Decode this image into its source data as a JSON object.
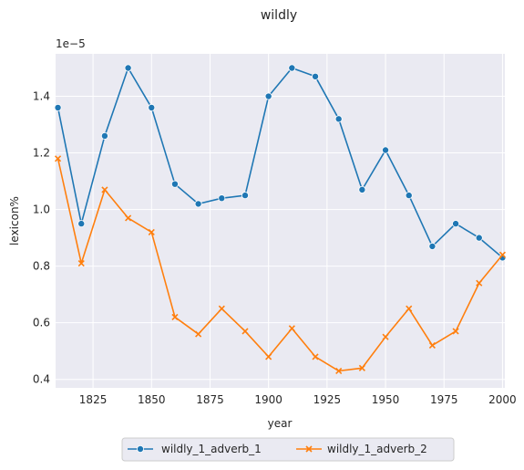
{
  "chart_data": {
    "type": "line",
    "title": "wildly",
    "xlabel": "year",
    "ylabel": "lexicon%",
    "y_offset_label": "1e−5",
    "xlim": [
      1809,
      2001
    ],
    "ylim": [
      0.37,
      1.55
    ],
    "x_ticks": [
      1825,
      1850,
      1875,
      1900,
      1925,
      1950,
      1975,
      2000
    ],
    "y_ticks": [
      0.4,
      0.6,
      0.8,
      1.0,
      1.2,
      1.4
    ],
    "y_tick_labels": [
      "0.4",
      "0.6",
      "0.8",
      "1.0",
      "1.2",
      "1.4"
    ],
    "grid": true,
    "legend_placement": "bottom-center-outside",
    "x": [
      1810,
      1820,
      1830,
      1840,
      1850,
      1860,
      1870,
      1880,
      1890,
      1900,
      1910,
      1920,
      1930,
      1940,
      1950,
      1960,
      1970,
      1980,
      1990,
      2000
    ],
    "series": [
      {
        "name": "wildly_1_adverb_1",
        "color": "#1f77b4",
        "marker": "circle",
        "values": [
          1.36,
          0.95,
          1.26,
          1.5,
          1.36,
          1.09,
          1.02,
          1.04,
          1.05,
          1.4,
          1.5,
          1.47,
          1.32,
          1.07,
          1.21,
          1.05,
          0.87,
          0.95,
          0.9,
          0.83
        ]
      },
      {
        "name": "wildly_1_adverb_2",
        "color": "#ff7f0e",
        "marker": "x",
        "values": [
          1.18,
          0.81,
          1.07,
          0.97,
          0.92,
          0.62,
          0.56,
          0.65,
          0.57,
          0.48,
          0.58,
          0.48,
          0.43,
          0.44,
          0.55,
          0.65,
          0.52,
          0.57,
          0.74,
          0.84
        ]
      }
    ]
  }
}
